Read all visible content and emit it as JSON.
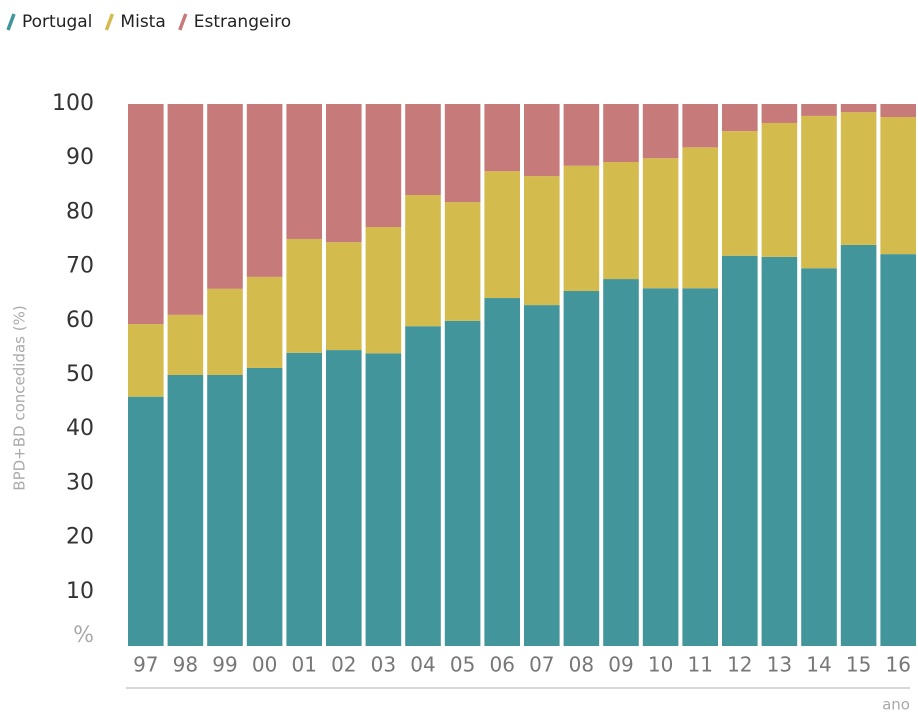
{
  "chart_data": {
    "type": "stacked_bar",
    "y_label": "BPD+BD concedidas (%)",
    "x_label": "ano",
    "categories": [
      "97",
      "98",
      "99",
      "00",
      "01",
      "02",
      "03",
      "04",
      "05",
      "06",
      "07",
      "08",
      "09",
      "10",
      "11",
      "12",
      "13",
      "14",
      "15",
      "16"
    ],
    "series": [
      {
        "name": "Portugal",
        "color": "#42959a",
        "values": [
          46,
          50,
          50,
          51.3,
          54.1,
          54.6,
          54,
          59,
          60,
          64.2,
          62.9,
          65.5,
          67.7,
          66,
          66,
          72,
          71.8,
          69.7,
          74,
          72.3
        ]
      },
      {
        "name": "Mista",
        "color": "#d4bb4e",
        "values": [
          13.4,
          11.1,
          15.9,
          16.8,
          21,
          19.9,
          23.3,
          24.2,
          21.9,
          23.4,
          23.8,
          23.1,
          21.6,
          24,
          26,
          23,
          24.7,
          28.1,
          24.5,
          25.3
        ]
      },
      {
        "name": "Estrangeiro",
        "color": "#c77a7a",
        "values": [
          40.6,
          38.9,
          34.1,
          31.9,
          24.9,
          25.5,
          22.7,
          16.8,
          18.1,
          12.4,
          13.3,
          11.4,
          10.7,
          10,
          8,
          5,
          3.5,
          2.2,
          1.5,
          2.4
        ]
      }
    ],
    "ylim": [
      0,
      100
    ],
    "yticks": [
      {
        "value": 0,
        "label": "%"
      },
      10,
      20,
      30,
      40,
      50,
      60,
      70,
      80,
      90,
      100
    ],
    "legend": "top-left"
  }
}
